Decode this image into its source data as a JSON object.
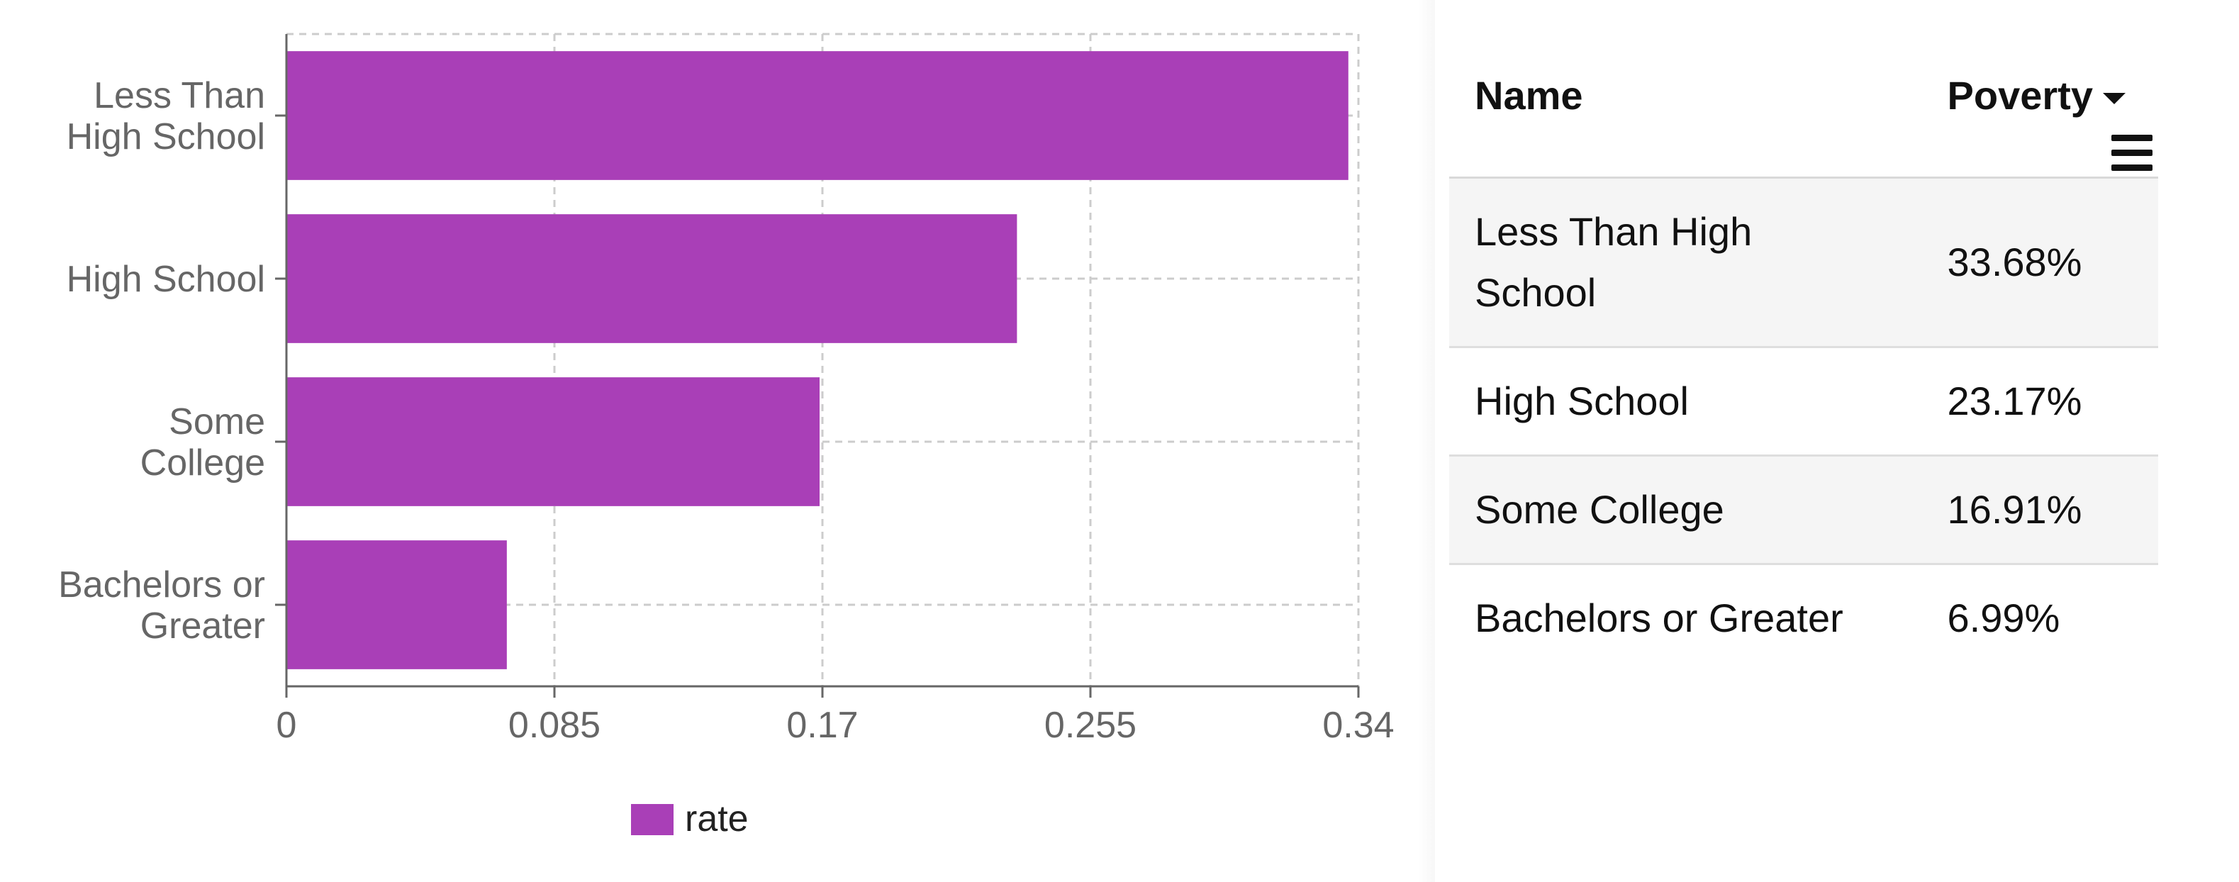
{
  "chart_data": {
    "type": "bar",
    "orientation": "horizontal",
    "categories": [
      [
        "Less Than",
        "High School"
      ],
      [
        "High School"
      ],
      [
        "Some",
        "College"
      ],
      [
        "Bachelors or",
        "Greater"
      ]
    ],
    "series": [
      {
        "name": "rate",
        "values": [
          0.3368,
          0.2317,
          0.1691,
          0.0699
        ],
        "color": "#a93fb7"
      }
    ],
    "xticks": [
      "0",
      "0.085",
      "0.17",
      "0.255",
      "0.34"
    ],
    "xlim": [
      0,
      0.34
    ],
    "grid": true,
    "legend": {
      "position": "bottom",
      "items": [
        "rate"
      ]
    }
  },
  "table": {
    "headers": {
      "name": "Name",
      "poverty": "Poverty"
    },
    "rows": [
      {
        "name": "Less Than High School",
        "poverty": "33.68%"
      },
      {
        "name": "High School",
        "poverty": "23.17%"
      },
      {
        "name": "Some College",
        "poverty": "16.91%"
      },
      {
        "name": "Bachelors or Greater",
        "poverty": "6.99%"
      }
    ],
    "sort_icon": "caret-down-icon",
    "menu_icon": "hamburger-menu-icon"
  },
  "colors": {
    "bar": "#a93fb7",
    "axis": "#666666",
    "grid": "#cccccc",
    "tick_text": "#666666"
  }
}
